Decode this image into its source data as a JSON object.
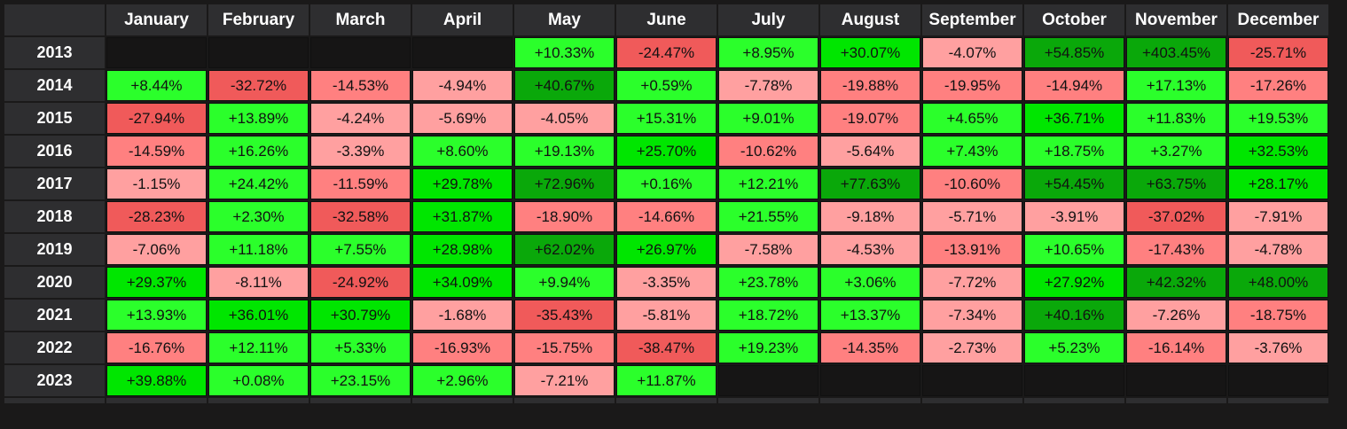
{
  "colors": {
    "background": "#1a1919",
    "header_bg": "#2e2e30",
    "header_text": "#ffffff",
    "positive_light": "#2bff2b",
    "positive_mid": "#00e600",
    "positive_dark": "#0aa80a",
    "negative_light": "#ffa0a0",
    "negative_mid": "#ff8080",
    "negative_dark": "#f05a5a",
    "empty": "#161515"
  },
  "chart_data": {
    "type": "heatmap",
    "title": "",
    "columns": [
      "January",
      "February",
      "March",
      "April",
      "May",
      "June",
      "July",
      "August",
      "September",
      "October",
      "November",
      "December"
    ],
    "rows": [
      "2013",
      "2014",
      "2015",
      "2016",
      "2017",
      "2018",
      "2019",
      "2020",
      "2021",
      "2022",
      "2023"
    ],
    "values": [
      [
        null,
        null,
        null,
        null,
        10.33,
        -24.47,
        8.95,
        30.07,
        -4.07,
        54.85,
        403.45,
        -25.71
      ],
      [
        8.44,
        -32.72,
        -14.53,
        -4.94,
        40.67,
        0.59,
        -7.78,
        -19.88,
        -19.95,
        -14.94,
        17.13,
        -17.26
      ],
      [
        -27.94,
        13.89,
        -4.24,
        -5.69,
        -4.05,
        15.31,
        9.01,
        -19.07,
        4.65,
        36.71,
        11.83,
        19.53
      ],
      [
        -14.59,
        16.26,
        -3.39,
        8.6,
        19.13,
        25.7,
        -10.62,
        -5.64,
        7.43,
        18.75,
        3.27,
        32.53
      ],
      [
        -1.15,
        24.42,
        -11.59,
        29.78,
        72.96,
        0.16,
        12.21,
        77.63,
        -10.6,
        54.45,
        63.75,
        28.17
      ],
      [
        -28.23,
        2.3,
        -32.58,
        31.87,
        -18.9,
        -14.66,
        21.55,
        -9.18,
        -5.71,
        -3.91,
        -37.02,
        -7.91
      ],
      [
        -7.06,
        11.18,
        7.55,
        28.98,
        62.02,
        26.97,
        -7.58,
        -4.53,
        -13.91,
        10.65,
        -17.43,
        -4.78
      ],
      [
        29.37,
        -8.11,
        -24.92,
        34.09,
        9.94,
        -3.35,
        23.78,
        3.06,
        -7.72,
        27.92,
        42.32,
        48.0
      ],
      [
        13.93,
        36.01,
        30.79,
        -1.68,
        -35.43,
        -5.81,
        18.72,
        13.37,
        -7.34,
        40.16,
        -7.26,
        -18.75
      ],
      [
        -16.76,
        12.11,
        5.33,
        -16.93,
        -15.75,
        -38.47,
        19.23,
        -14.35,
        -2.73,
        5.23,
        -16.14,
        -3.76
      ],
      [
        39.88,
        0.08,
        23.15,
        2.96,
        -7.21,
        11.87,
        null,
        null,
        null,
        null,
        null,
        null
      ]
    ],
    "labels": [
      [
        "",
        "",
        "",
        "",
        "+10.33%",
        "-24.47%",
        "+8.95%",
        "+30.07%",
        "-4.07%",
        "+54.85%",
        "+403.45%",
        "-25.71%"
      ],
      [
        "+8.44%",
        "-32.72%",
        "-14.53%",
        "-4.94%",
        "+40.67%",
        "+0.59%",
        "-7.78%",
        "-19.88%",
        "-19.95%",
        "-14.94%",
        "+17.13%",
        "-17.26%"
      ],
      [
        "-27.94%",
        "+13.89%",
        "-4.24%",
        "-5.69%",
        "-4.05%",
        "+15.31%",
        "+9.01%",
        "-19.07%",
        "+4.65%",
        "+36.71%",
        "+11.83%",
        "+19.53%"
      ],
      [
        "-14.59%",
        "+16.26%",
        "-3.39%",
        "+8.60%",
        "+19.13%",
        "+25.70%",
        "-10.62%",
        "-5.64%",
        "+7.43%",
        "+18.75%",
        "+3.27%",
        "+32.53%"
      ],
      [
        "-1.15%",
        "+24.42%",
        "-11.59%",
        "+29.78%",
        "+72.96%",
        "+0.16%",
        "+12.21%",
        "+77.63%",
        "-10.60%",
        "+54.45%",
        "+63.75%",
        "+28.17%"
      ],
      [
        "-28.23%",
        "+2.30%",
        "-32.58%",
        "+31.87%",
        "-18.90%",
        "-14.66%",
        "+21.55%",
        "-9.18%",
        "-5.71%",
        "-3.91%",
        "-37.02%",
        "-7.91%"
      ],
      [
        "-7.06%",
        "+11.18%",
        "+7.55%",
        "+28.98%",
        "+62.02%",
        "+26.97%",
        "-7.58%",
        "-4.53%",
        "-13.91%",
        "+10.65%",
        "-17.43%",
        "-4.78%"
      ],
      [
        "+29.37%",
        "-8.11%",
        "-24.92%",
        "+34.09%",
        "+9.94%",
        "-3.35%",
        "+23.78%",
        "+3.06%",
        "-7.72%",
        "+27.92%",
        "+42.32%",
        "+48.00%"
      ],
      [
        "+13.93%",
        "+36.01%",
        "+30.79%",
        "-1.68%",
        "-35.43%",
        "-5.81%",
        "+18.72%",
        "+13.37%",
        "-7.34%",
        "+40.16%",
        "-7.26%",
        "-18.75%"
      ],
      [
        "-16.76%",
        "+12.11%",
        "+5.33%",
        "-16.93%",
        "-15.75%",
        "-38.47%",
        "+19.23%",
        "-14.35%",
        "-2.73%",
        "+5.23%",
        "-16.14%",
        "-3.76%"
      ],
      [
        "+39.88%",
        "+0.08%",
        "+23.15%",
        "+2.96%",
        "-7.21%",
        "+11.87%",
        "",
        "",
        "",
        "",
        "",
        ""
      ]
    ],
    "color_scale": "green for positive, red for negative; darker with larger magnitude",
    "grid": true,
    "legend": "none"
  }
}
